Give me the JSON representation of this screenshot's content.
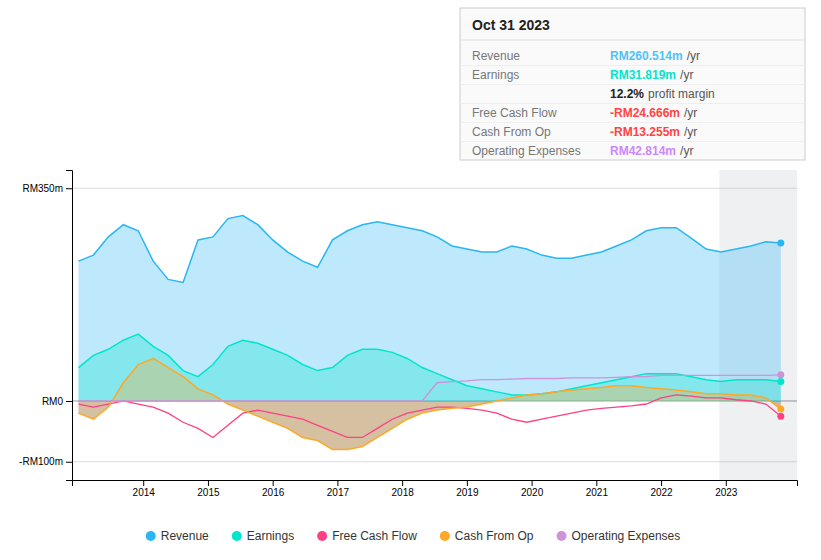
{
  "chart_data": {
    "type": "line",
    "title": "Oct 31 2023",
    "x": [
      2013,
      2013.230851,
      2013.461702,
      2013.692553,
      2013.923404,
      2014.154255,
      2014.385106,
      2014.615957,
      2014.846809,
      2015.07766,
      2015.308511,
      2015.539362,
      2015.770213,
      2016.001064,
      2016.231915,
      2016.462766,
      2016.693617,
      2016.924468,
      2017.155319,
      2017.38617,
      2017.617021,
      2017.847872,
      2018.078723,
      2018.309574,
      2018.540426,
      2018.771277,
      2019.002128,
      2019.232979,
      2019.46383,
      2019.694681,
      2019.925532,
      2020.156383,
      2020.387234,
      2020.618085,
      2020.848936,
      2021.079787,
      2021.310638,
      2021.541489,
      2021.77234,
      2022.003191,
      2022.234043,
      2022.464894,
      2022.695745,
      2022.926596,
      2023.157447,
      2023.388298,
      2023.619149,
      2023.85
    ],
    "series": [
      {
        "name": "Revenue",
        "type": "area",
        "color": "#29b6f6",
        "values": [
          230,
          240,
          270,
          290,
          280,
          230,
          200,
          195,
          265,
          270,
          300,
          305,
          290,
          265,
          245,
          230,
          220,
          265,
          280,
          290,
          295,
          290,
          285,
          280,
          270,
          255,
          250,
          245,
          245,
          255,
          250,
          240,
          235,
          235,
          240,
          245,
          255,
          265,
          280,
          285,
          285,
          268,
          250,
          245,
          250,
          255,
          262,
          260
        ]
      },
      {
        "name": "Earnings",
        "type": "area",
        "color": "#00e5cc",
        "values": [
          55,
          75,
          85,
          100,
          110,
          90,
          75,
          50,
          40,
          60,
          90,
          100,
          95,
          85,
          75,
          60,
          50,
          55,
          75,
          85,
          85,
          80,
          70,
          55,
          45,
          35,
          25,
          20,
          15,
          10,
          10,
          12,
          15,
          20,
          25,
          30,
          35,
          40,
          45,
          45,
          45,
          40,
          35,
          32,
          35,
          35,
          35,
          32
        ]
      },
      {
        "name": "Free Cash Flow",
        "type": "line",
        "color": "#ff4081",
        "values": [
          -5,
          -10,
          -5,
          0,
          -5,
          -10,
          -20,
          -35,
          -45,
          -60,
          -40,
          -20,
          -15,
          -20,
          -25,
          -30,
          -40,
          -50,
          -60,
          -60,
          -45,
          -30,
          -20,
          -15,
          -10,
          -10,
          -12,
          -15,
          -20,
          -30,
          -35,
          -30,
          -25,
          -20,
          -15,
          -12,
          -10,
          -8,
          -5,
          5,
          10,
          8,
          5,
          5,
          2,
          0,
          -5,
          -25
        ]
      },
      {
        "name": "Cash From Op",
        "type": "area",
        "color": "#ffa726",
        "values": [
          -20,
          -30,
          -10,
          30,
          60,
          70,
          55,
          40,
          20,
          10,
          -5,
          -15,
          -25,
          -35,
          -45,
          -60,
          -65,
          -80,
          -80,
          -75,
          -60,
          -45,
          -30,
          -20,
          -15,
          -12,
          -10,
          -5,
          0,
          5,
          10,
          12,
          15,
          18,
          20,
          22,
          25,
          25,
          22,
          20,
          18,
          15,
          12,
          12,
          10,
          10,
          5,
          -13
        ]
      },
      {
        "name": "Operating Expenses",
        "type": "line",
        "color": "#ce93d8",
        "values": [
          0,
          0,
          0,
          0,
          0,
          0,
          0,
          0,
          0,
          0,
          0,
          0,
          0,
          0,
          0,
          0,
          0,
          0,
          0,
          0,
          0,
          0,
          0,
          0,
          30,
          32,
          33,
          35,
          35,
          36,
          37,
          37,
          37,
          38,
          38,
          38,
          39,
          40,
          40,
          42,
          42,
          42,
          42,
          42,
          42,
          42,
          42,
          43
        ]
      }
    ],
    "xlim": [
      2012.9,
      2024.1
    ],
    "xticks": [
      2014,
      2015,
      2016,
      2017,
      2018,
      2019,
      2020,
      2021,
      2022,
      2023
    ],
    "ylim": [
      -130,
      380
    ],
    "yticks": [
      {
        "value": 350,
        "label": "RM350m"
      },
      {
        "value": 0,
        "label": "RM0"
      },
      {
        "value": -100,
        "label": "-RM100m"
      }
    ],
    "grid": true,
    "legend": "bottom",
    "highlight_x": [
      2022.9,
      2024.1
    ],
    "annotations": [
      {
        "label": "Revenue",
        "value": "RM260.514m",
        "suffix": "/yr",
        "color": "#4fc3f7"
      },
      {
        "label": "Earnings",
        "value": "RM31.819m",
        "suffix": "/yr",
        "color": "#00e5cc"
      },
      {
        "value": "12.2%",
        "suffix": "profit margin"
      },
      {
        "label": "Free Cash Flow",
        "value": "-RM24.666m",
        "suffix": "/yr",
        "color": "#ff4444"
      },
      {
        "label": "Cash From Op",
        "value": "-RM13.255m",
        "suffix": "/yr",
        "color": "#ff4444"
      },
      {
        "label": "Operating Expenses",
        "value": "RM42.814m",
        "suffix": "/yr",
        "color": "#cc88ff"
      }
    ]
  }
}
